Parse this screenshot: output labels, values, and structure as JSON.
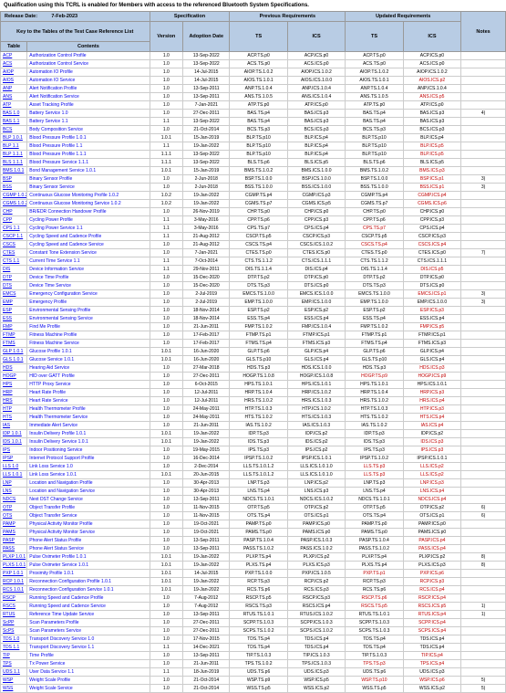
{
  "header_note": "Qualification using this TCRL is enabled for Members with access to the referenced Bluetooth System Specifications.",
  "release_label": "Release Date:",
  "release_date": "7-Feb-2023",
  "key_label": "Key to the Tables of the Test Case Reference List",
  "header_groups": {
    "spec": "Specification",
    "prev": "Previous Requirements",
    "upd": "Updated Requirements"
  },
  "columns": {
    "table": "Table",
    "contents": "Contents",
    "version": "Version",
    "adopt": "Adoption Date",
    "ts": "TS",
    "ics": "ICS",
    "notes": "Notes"
  },
  "rows": [
    [
      "ACP",
      "Authorization Control Profile",
      "1.0",
      "13-Sep-2022",
      "ACP.TS.p0",
      "ACP.ICS.p0",
      "ACP.TS.p0",
      "ACP.ICS.p0",
      "",
      "",
      "",
      ""
    ],
    [
      "ACS",
      "Authorization Control Service",
      "1.0",
      "13-Sep-2022",
      "ACS.TS.p0",
      "ACS.ICS.p0",
      "ACS.TS.p0",
      "ACS.ICS.p0",
      "",
      "",
      "",
      ""
    ],
    [
      "AIOP",
      "Automation IO Profile",
      "1.0",
      "14-Jul-2015",
      "AIOP.TS.1.0.2",
      "AIOP.ICS.1.0.2",
      "AIOP.TS.1.0.2",
      "AIOP.ICS.1.0.2",
      "",
      "",
      "",
      ""
    ],
    [
      "AIOS",
      "Automation IO Service",
      "1.0",
      "14-Jul-2015",
      "AIOS.TS.1.0.1",
      "AIOS.ICS.1.0.0",
      "AIOS.TS.1.0.1",
      "AIOS.ICS.p2",
      "",
      "",
      "",
      "red"
    ],
    [
      "ANP",
      "Alert Notification Profile",
      "1.0",
      "13-Sep-2011",
      "ANP.TS.1.0.4",
      "ANP.ICS.1.0.4",
      "ANP.TS.1.0.4",
      "ANP.ICS.1.0.4",
      "",
      "",
      "",
      ""
    ],
    [
      "ANS",
      "Alert Notification Service",
      "1.0",
      "13-Sep-2011",
      "ANS.TS.1.0.5",
      "ANS.ICS.1.0.4",
      "ANS.TS.1.0.5",
      "ANS.ICS.p5",
      "",
      "",
      "",
      "red"
    ],
    [
      "ATP",
      "Asset Tracking Profile",
      "1.0",
      "7-Jan-2021",
      "ATP.TS.p0",
      "ATP.ICS.p0",
      "ATP.TS.p0",
      "ATP.ICS.p0",
      "",
      "",
      "",
      ""
    ],
    [
      "BAS 1.0",
      "Battery Service 1.0",
      "1.0",
      "27-Dec-2011",
      "BAS.TS.p4",
      "BAS.ICS.p3",
      "BAS.TS.p4",
      "BAS.ICS.p3",
      "",
      "",
      "",
      "",
      "4)"
    ],
    [
      "BAS 1.1",
      "Battery Service 1.1",
      "1.1",
      "13-Sep-2022",
      "BAS.TS.p4",
      "BAS.ICS.p3",
      "BAS.TS.p4",
      "BAS.ICS.p3",
      "",
      "",
      "",
      ""
    ],
    [
      "BCS",
      "Body Composition Service",
      "1.0",
      "21-Oct-2014",
      "BCS.TS.p3",
      "BCS.ICS.p3",
      "BCS.TS.p3",
      "BCS.ICS.p3",
      "",
      "",
      "",
      ""
    ],
    [
      "BLP 1.0.1",
      "Blood Pressure Profile 1.0.1",
      "1.0.1",
      "15-Jan-2019",
      "BLP.TS.p10",
      "BLP.ICS.p4",
      "BLP.TS.p10",
      "BLP.ICS.p4",
      "",
      "",
      "",
      ""
    ],
    [
      "BLP 1.1",
      "Blood Pressure Profile 1.1",
      "1.1",
      "19-Jan-2022",
      "BLP.TS.p10",
      "BLP.ICS.p4",
      "BLP.TS.p10",
      "BLP.ICS.p5",
      "",
      "",
      "",
      "red"
    ],
    [
      "BLP 1.1.1",
      "Blood Pressure Profile 1.1.1",
      "1.1.1",
      "13-Sep-2022",
      "BLP.TS.p10",
      "BLP.ICS.p4",
      "BLP.TS.p10",
      "BLP.ICS.p5",
      "",
      "",
      "",
      "red"
    ],
    [
      "BLS 1.1.1",
      "Blood Pressure Service 1.1.1",
      "1.1.1",
      "13-Sep-2022",
      "BLS.TS.p6",
      "BLS.ICS.p5",
      "BLS.TS.p6",
      "BLS.ICS.p5",
      "",
      "",
      "",
      ""
    ],
    [
      "BMS 1.0.1",
      "Bond Management Service 1.0.1",
      "1.0.1",
      "15-Jan-2019",
      "BMS.TS.1.0.2",
      "BMS.ICS.1.0.0",
      "BMS.TS.1.0.2",
      "BMS.ICS.p3",
      "",
      "",
      "",
      "red"
    ],
    [
      "BSP",
      "Binary Sensor Profile",
      "1.0",
      "2-Jun-2018",
      "BSP.TS.1.0.0",
      "BSP.ICS.1.0.0",
      "BSP.TS.1.0.0",
      "BSP.ICS.p1",
      "",
      "",
      "",
      "red",
      "3)"
    ],
    [
      "BSS",
      "Binary Sensor Service",
      "1.0",
      "2-Jun-2018",
      "BSS.TS.1.0.0",
      "BSS.ICS.1.0.0",
      "BSS.TS.1.0.0",
      "BSS.ICS.p1",
      "",
      "",
      "",
      "red",
      "3)"
    ],
    [
      "CGMP 1.0.2",
      "Continuous Glucose Monitoring Profile 1.0.2",
      "1.0.2",
      "19-Jan-2022",
      "CGMP.TS.p4",
      "CGMP.ICS.p3",
      "CGMP.TS.p4",
      "CGMP.ICS.p4",
      "",
      "",
      "",
      "red"
    ],
    [
      "CGMS 1.0.2",
      "Continuous Glucose Monitoring Service 1.0.2",
      "1.0.2",
      "19-Jan-2022",
      "CGMS.TS.p7",
      "CGMS.ICS.p5",
      "CGMS.TS.p7",
      "CGMS.ICS.p6",
      "",
      "",
      "",
      "red"
    ],
    [
      "CHP",
      "BR/EDR Connection Handover Profile",
      "1.0",
      "26-Nov-2019",
      "CHP.TS.p0",
      "CHP.ICS.p0",
      "CHP.TS.p0",
      "CHP.ICS.p0",
      "",
      "",
      "",
      ""
    ],
    [
      "CPP",
      "Cycling Power Profile",
      "1.1",
      "3-May-2016",
      "CPP.TS.p6",
      "CPP.ICS.p3",
      "CPP.TS.p6",
      "CPP.ICS.p3",
      "",
      "",
      "",
      ""
    ],
    [
      "CPS 1.1",
      "Cycling Power Service 1.1",
      "1.1",
      "3-May-2016",
      "CPS.TS.p7",
      "CPS.ICS.p4",
      "CPS.TS.p7",
      "CPS.ICS.p4",
      "",
      "",
      "red",
      ""
    ],
    [
      "CSCP 1.1",
      "Cycling Speed and Cadence Profile",
      "1.1",
      "21-Aug-2012",
      "CSCP.TS.p5",
      "CSCP.ICS.p3",
      "CSCP.TS.p5",
      "CSCP.ICS.p3",
      "",
      "",
      "",
      ""
    ],
    [
      "CSCS",
      "Cycling Speed and Cadence Service",
      "1.0",
      "21-Aug-2012",
      "CSCS.TS.p4",
      "CSCS.ICS.1.0.2",
      "CSCS.TS.p4",
      "CSCS.ICS.p4",
      "",
      "",
      "red",
      "red"
    ],
    [
      "CTES",
      "Constant Tone Extension Service",
      "1.0",
      "7-Jan-2021",
      "CTES.TS.p0",
      "CTES.ICS.p0",
      "CTES.TS.p0",
      "CTES.ICS.p0",
      "",
      "",
      "",
      "",
      "7)"
    ],
    [
      "CTS 1.1",
      "Current Time Service 1.1",
      "1.1",
      "7-Oct-2014",
      "CTS.TS.1.1.2",
      "CTS.ICS.1.1.1",
      "CTS.TS.1.1.2",
      "CTS.ICS.1.1.1",
      "",
      "",
      "",
      ""
    ],
    [
      "DIS",
      "Device Information Service",
      "1.1",
      "29-Nov-2011",
      "DIS.TS.1.1.4",
      "DIS.ICS.p4",
      "DIS.TS.1.1.4",
      "DIS.ICS.p5",
      "",
      "",
      "",
      "red"
    ],
    [
      "DTP",
      "Device Time Profile",
      "1.0",
      "15-Dec-2020",
      "DTP.TS.p2",
      "DTP.ICS.p0",
      "DTP.TS.p2",
      "DTP.ICS.p0",
      "",
      "",
      "",
      ""
    ],
    [
      "DTS",
      "Device Time Service",
      "1.0",
      "15-Dec-2020",
      "DTS.TS.p3",
      "DTS.ICS.p0",
      "DTS.TS.p3",
      "DTS.ICS.p0",
      "",
      "",
      "",
      ""
    ],
    [
      "EMCS",
      "Emergency Configuration Service",
      "1.0",
      "2-Jul-2019",
      "EMCS.TS.1.0.0",
      "EMCS.ICS.1.0.0",
      "EMCS.TS.1.0.0",
      "EMCS.ICS.p1",
      "",
      "",
      "",
      "red",
      "3)"
    ],
    [
      "EMP",
      "Emergency Profile",
      "1.0",
      "2-Jul-2019",
      "EMP.TS.1.0.0",
      "EMP.ICS.1.0.0",
      "EMP.TS.1.0.0",
      "EMP.ICS.1.0.0",
      "",
      "",
      "",
      "",
      "3)"
    ],
    [
      "ESP",
      "Environmental Sensing Profile",
      "1.0",
      "18-Nov-2014",
      "ESP.TS.p2",
      "ESP.ICS.p2",
      "ESP.TS.p2",
      "ESP.ICS.p3",
      "",
      "",
      "",
      "red"
    ],
    [
      "ESS",
      "Environmental Sensing Service",
      "1.0",
      "18-Nov-2014",
      "ESS.TS.p4",
      "ESS.ICS.p4",
      "ESS.TS.p4",
      "ESS.ICS.p4",
      "",
      "",
      "",
      ""
    ],
    [
      "FMP",
      "Find Me Profile",
      "1.0",
      "21-Jun-2011",
      "FMP.TS.1.0.2",
      "FMP.ICS.1.0.4",
      "FMP.TS.1.0.2",
      "FMP.ICS.p5",
      "",
      "",
      "",
      "red"
    ],
    [
      "FTMP",
      "Fitness Machine Profile",
      "1.0",
      "17-Feb-2017",
      "FTMP.TS.p1",
      "FTMP.ICS.p1",
      "FTMP.TS.p1",
      "FTMP.ICS.p1",
      "",
      "",
      "",
      ""
    ],
    [
      "FTMS",
      "Fitness Machine Service",
      "1.0",
      "17-Feb-2017",
      "FTMS.TS.p4",
      "FTMS.ICS.p3",
      "FTMS.TS.p4",
      "FTMS.ICS.p3",
      "",
      "",
      "",
      ""
    ],
    [
      "GLP 1.0.1",
      "Glucose Profile 1.0.1",
      "1.0.1",
      "16-Jun-2020",
      "GLP.TS.p6",
      "GLP.ICS.p4",
      "GLP.TS.p6",
      "GLP.ICS.p4",
      "",
      "",
      "",
      ""
    ],
    [
      "GLS 1.0.1",
      "Glucose Service 1.0.1",
      "1.0.1",
      "16-Jun-2020",
      "GLS.TS.p10",
      "GLS.ICS.p4",
      "GLS.TS.p10",
      "GLS.ICS.p4",
      "",
      "",
      "",
      ""
    ],
    [
      "HDS",
      "Hearing Aid Service",
      "1.0",
      "27-Mar-2018",
      "HDS.TS.p3",
      "HDS.ICS.1.0.0",
      "HDS.TS.p3",
      "HDS.ICS.p3",
      "",
      "",
      "",
      "red"
    ],
    [
      "HOGP",
      "HID over GATT Profile",
      "1.0",
      "27-Dec-2011",
      "HOGP.TS.1.0.8",
      "HOGP.ICS.1.0.8",
      "HOGP.TS.p9",
      "HOGP.ICS.p9",
      "",
      "",
      "red",
      "red"
    ],
    [
      "HPS",
      "HTTP Proxy Service",
      "1.0",
      "6-Oct-2015",
      "HPS.TS.1.0.1",
      "HPS.ICS.1.0.1",
      "HPS.TS.1.0.1",
      "HPS.ICS.1.0.1",
      "",
      "",
      "",
      ""
    ],
    [
      "HRP",
      "Heart Rate Profile",
      "1.0",
      "12-Jul-2011",
      "HRP.TS.1.0.4",
      "HRP.ICS.1.0.2",
      "HRP.TS.1.0.4",
      "HRP.ICS.p3",
      "",
      "",
      "",
      "red"
    ],
    [
      "HRS",
      "Heart Rate Service",
      "1.0",
      "12-Jul-2011",
      "HRS.TS.1.0.2",
      "HRS.ICS.1.0.3",
      "HRS.TS.1.0.2",
      "HRS.ICS.p4",
      "",
      "",
      "",
      "red"
    ],
    [
      "HTP",
      "Health Thermometer Profile",
      "1.0",
      "24-May-2011",
      "HTP.TS.1.0.3",
      "HTP.ICS.1.0.2",
      "HTP.TS.1.0.3",
      "HTP.ICS.p3",
      "",
      "",
      "",
      "red"
    ],
    [
      "HTS",
      "Health Thermometer Service",
      "1.0",
      "24-May-2011",
      "HTS.TS.1.0.2",
      "HTS.ICS.1.0.3",
      "HTS.TS.1.0.2",
      "HTS.ICS.p4",
      "",
      "",
      "",
      "red"
    ],
    [
      "IAS",
      "Immediate Alert Service",
      "1.0",
      "21-Jun-2011",
      "IAS.TS.1.0.2",
      "IAS.ICS.1.0.3",
      "IAS.TS.1.0.2",
      "IAS.ICS.p4",
      "",
      "",
      "",
      "red"
    ],
    [
      "IDP 1.0.1",
      "Insulin Delivery Profile 1.0.1",
      "1.0.1",
      "19-Jan-2022",
      "IDP.TS.p3",
      "IDP.ICS.p2",
      "IDP.TS.p3",
      "IDP.ICS.p2",
      "",
      "",
      "",
      ""
    ],
    [
      "IDS 1.0.1",
      "Insulin Delivery Service 1.0.1",
      "1.0.1",
      "19-Jan-2022",
      "IDS.TS.p3",
      "IDS.ICS.p2",
      "IDS.TS.p3",
      "IDS.ICS.p3",
      "",
      "",
      "",
      "red"
    ],
    [
      "IPS",
      "Indoor Positioning Service",
      "1.0",
      "19-May-2015",
      "IPS.TS.p3",
      "IPS.ICS.p2",
      "IPS.TS.p3",
      "IPS.ICS.p3",
      "",
      "",
      "",
      "red"
    ],
    [
      "IPSP",
      "Internet Protocol Support Profile",
      "1.0",
      "16-Dec-2014",
      "IPSP.TS.1.0.2",
      "IPSP.ICS.1.0.1",
      "IPSP.TS.1.0.2",
      "IPSP.ICS.1.0.1",
      "",
      "",
      "",
      ""
    ],
    [
      "LLS 1.0",
      "Link Loss Service 1.0",
      "1.0",
      "2-Dec-2014",
      "LLS.TS.1.0.1.2",
      "LLS.ICS.1.0.1.0",
      "LLS.TS.p3",
      "LLS.ICS.p2",
      "",
      "",
      "red",
      "red"
    ],
    [
      "LLS 1.0.1",
      "Link Loss Service 1.0.1",
      "1.0.1",
      "20-Jun-2015",
      "LLS.TS.1.0.1.2",
      "LLS.ICS.1.0.1.0",
      "LLS.TS.p3",
      "LLS.ICS.p2",
      "",
      "",
      "red",
      "red"
    ],
    [
      "LNP",
      "Location and Navigation Profile",
      "1.0",
      "30-Apr-2013",
      "LNP.TS.p3",
      "LNP.ICS.p2",
      "LNP.TS.p3",
      "LNP.ICS.p3",
      "",
      "",
      "",
      "red"
    ],
    [
      "LNS",
      "Location and Navigation Service",
      "1.0",
      "30-Apr-2013",
      "LNS.TS.p4",
      "LNS.ICS.p3",
      "LNS.TS.p4",
      "LNS.ICS.p4",
      "",
      "",
      "",
      "red"
    ],
    [
      "NDCS",
      "Next DST Change Service",
      "1.0",
      "13-Sep-2011",
      "NDCS.TS.1.0.1",
      "NDCS.ICS.1.0.2",
      "NDCS.TS.1.0.1",
      "NDCS.ICS.p4",
      "",
      "",
      "",
      "red"
    ],
    [
      "OTP",
      "Object Transfer Profile",
      "1.0",
      "11-Nov-2015",
      "OTP.TS.p5",
      "OTP.ICS.p2",
      "OTP.TS.p5",
      "OTP.ICS.p2",
      "",
      "",
      "",
      "",
      "6)"
    ],
    [
      "OTS",
      "Object Transfer Service",
      "1.0",
      "11-Nov-2015",
      "OTS.TS.p4",
      "OTS.ICS.p1",
      "OTS.TS.p4",
      "OTS.ICS.p1",
      "",
      "",
      "",
      "",
      "6)"
    ],
    [
      "PAMP",
      "Physical Activity Monitor Profile",
      "1.0",
      "19-Oct-2021",
      "PAMP.TS.p0",
      "PAMP.ICS.p0",
      "PAMP.TS.p0",
      "PAMP.ICS.p0",
      "",
      "",
      "",
      ""
    ],
    [
      "PAMS",
      "Physical Activity Monitor Service",
      "1.0",
      "19-Oct-2021",
      "PAMS.TS.p0",
      "PAMS.ICS.p0",
      "PAMS.TS.p0",
      "PAMS.ICS.p0",
      "",
      "",
      "",
      ""
    ],
    [
      "PASP",
      "Phone Alert Status Profile",
      "1.0",
      "13-Sep-2011",
      "PASP.TS.1.0.4",
      "PASP.ICS.1.0.3",
      "PASP.TS.1.0.4",
      "PASP.ICS.p4",
      "",
      "",
      "",
      "red"
    ],
    [
      "PASS",
      "Phone Alert Status Service",
      "1.0",
      "13-Sep-2011",
      "PASS.TS.1.0.2",
      "PASS.ICS.1.0.2",
      "PASS.TS.1.0.2",
      "PASS.ICS.p4",
      "",
      "",
      "",
      "red"
    ],
    [
      "PLXP 1.0.1",
      "Pulse Oximeter Profile 1.0.1",
      "1.0.1",
      "19-Jan-2022",
      "PLXP.TS.p4",
      "PLXP.ICS.p2",
      "PLXP.TS.p4",
      "PLXP.ICS.p2",
      "",
      "",
      "",
      "",
      "8)"
    ],
    [
      "PLXS 1.0.1",
      "Pulse Oximeter Service 1.0.1",
      "1.0.1",
      "19-Jan-2022",
      "PLXS.TS.p4",
      "PLXS.ICS.p3",
      "PLXS.TS.p4",
      "PLXS.ICS.p3",
      "",
      "",
      "",
      "",
      "8)"
    ],
    [
      "PXP 1.0.1",
      "Proximity Profile 1.0.1",
      "1.0.1",
      "14-Jul-2015",
      "PXP.TS.1.0.0",
      "PXP.ICS.1.0.5",
      "PXP.TS.p1",
      "PXP.ICS.p6",
      "",
      "",
      "red",
      "red"
    ],
    [
      "RCP 1.0.1",
      "Reconnection Configuration Profile 1.0.1",
      "1.0.1",
      "19-Jan-2022",
      "RCP.TS.p3",
      "RCP.ICS.p2",
      "RCP.TS.p3",
      "RCP.ICS.p3",
      "",
      "",
      "",
      "red"
    ],
    [
      "RCS 1.0.1",
      "Reconnection Configuration Service 1.0.1",
      "1.0.1",
      "19-Jan-2022",
      "RCS.TS.p6",
      "RCS.ICS.p3",
      "RCS.TS.p6",
      "RCS.ICS.p4",
      "",
      "",
      "",
      "red"
    ],
    [
      "RSCP",
      "Running Speed and Cadence Profile",
      "1.0",
      "7-Aug-2012",
      "RSCP.TS.p5",
      "RSCP.ICS.p3",
      "RSCP.TS.p6",
      "RSCP.ICS.p4",
      "",
      "",
      "red",
      "red"
    ],
    [
      "RSCS",
      "Running Speed and Cadence Service",
      "1.0",
      "7-Aug-2012",
      "RSCS.TS.p3",
      "RSCS.ICS.p4",
      "RSCS.TS.p5",
      "RSCS.ICS.p5",
      "",
      "",
      "red",
      "red",
      "1)"
    ],
    [
      "RTUS",
      "Reference Time Update Service",
      "1.0",
      "13-Sep-2011",
      "RTUS.TS.1.0.1",
      "RTUS.ICS.1.0.2",
      "RTUS.TS.1.0.1",
      "RTUS.ICS.p4",
      "",
      "",
      "",
      "red",
      "1)"
    ],
    [
      "ScPP",
      "Scan Parameters Profile",
      "1.0",
      "27-Dec-2011",
      "SCPP.TS.1.0.3",
      "SCPP.ICS.1.0.3",
      "SCPP.TS.1.0.3",
      "SCPP.ICS.p4",
      "",
      "",
      "",
      "red"
    ],
    [
      "ScPS",
      "Scan Parameters Service",
      "1.0",
      "27-Dec-2011",
      "SCPS.TS.1.0.2",
      "SCPS.ICS.1.0.2",
      "SCPS.TS.1.0.3",
      "SCPS.ICS.p4",
      "",
      "",
      "",
      "red"
    ],
    [
      "TDS 1.0",
      "Transport Discovery Service 1.0",
      "1.0",
      "17-Nov-2015",
      "TDS.TS.p4",
      "TDS.ICS.p4",
      "TDS.TS.p4",
      "TDS.ICS.p4",
      "",
      "",
      "",
      ""
    ],
    [
      "TDS 1.1",
      "Transport Discovery Service 1.1",
      "1.1",
      "14-Dec-2021",
      "TDS.TS.p4",
      "TDS.ICS.p4",
      "TDS.TS.p4",
      "TDS.ICS.p4",
      "",
      "",
      "",
      ""
    ],
    [
      "TIP",
      "Time Profile",
      "1.0",
      "13-Sep-2011",
      "TIP.TS.1.0.3",
      "TIP.ICS.1.0.3",
      "TIP.TS.1.0.3",
      "TIP.ICS.p4",
      "",
      "",
      "",
      "red"
    ],
    [
      "TPS",
      "Tx Power Service",
      "1.0",
      "21-Jun-2011",
      "TPS.TS.1.0.2",
      "TPS.ICS.1.0.3",
      "TPS.TS.p3",
      "TPS.ICS.p4",
      "",
      "",
      "red",
      "red"
    ],
    [
      "UDS 1.1",
      "User Data Service 1.1",
      "1.1",
      "18-Jun-2019",
      "UDS.TS.p6",
      "UDS.ICS.p3",
      "UDS.TS.p6",
      "UDS.ICS.p3",
      "",
      "",
      "",
      ""
    ],
    [
      "WSP",
      "Weight Scale Profile",
      "1.0",
      "21-Oct-2014",
      "WSP.TS.p9",
      "WSP.ICS.p5",
      "WSP.TS.p10",
      "WSP.ICS.p6",
      "",
      "",
      "red",
      "red",
      "5)"
    ],
    [
      "WSS",
      "Weight Scale Service",
      "1.0",
      "21-Oct-2014",
      "WSS.TS.p5",
      "WSS.ICS.p2",
      "WSS.TS.p5",
      "WSS.ICS.p2",
      "",
      "",
      "",
      "",
      "5)"
    ]
  ]
}
